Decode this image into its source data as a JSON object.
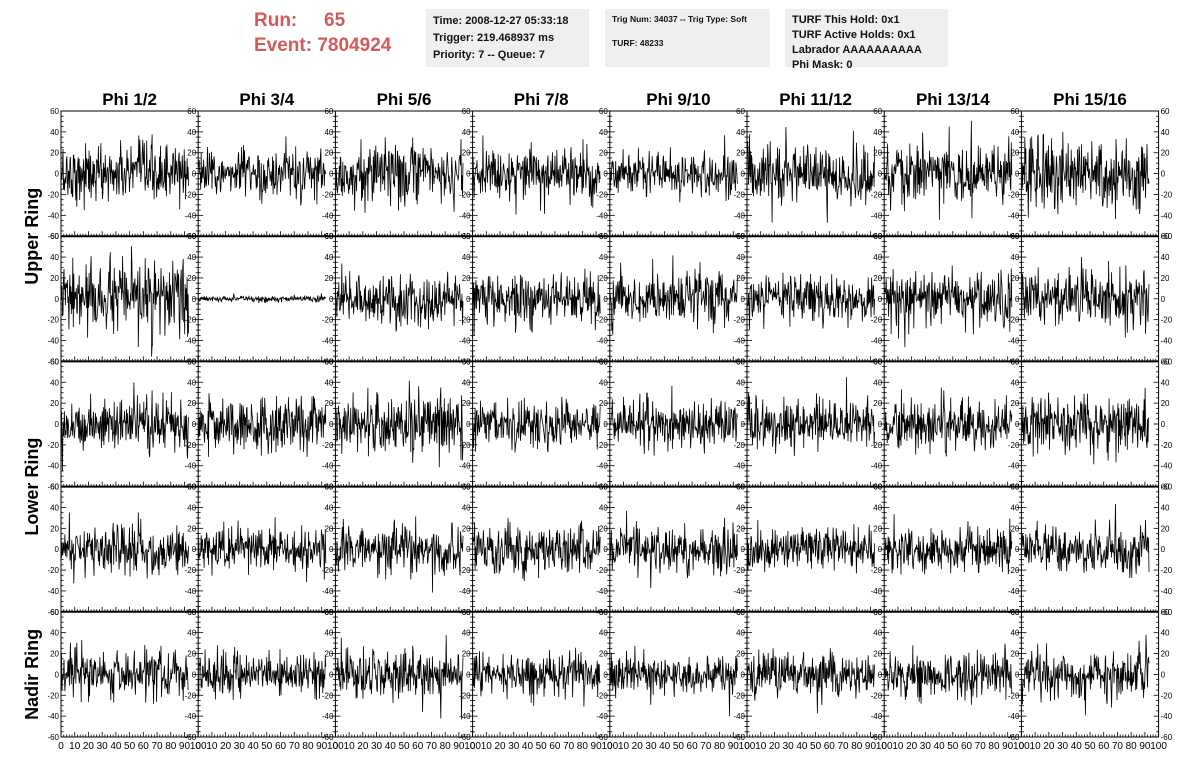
{
  "header": {
    "run_label": "Run:",
    "run_value": "65",
    "event_label": "Event:",
    "event_value": "7804924"
  },
  "info_time": {
    "line1": "Time: 2008-12-27 05:33:18",
    "line2": "Trigger: 219.468937 ms",
    "line3": "Priority: 7 -- Queue: 7"
  },
  "info_trig": {
    "line1": "Trig Num: 34037 -- Trig Type: Soft",
    "line2": "",
    "line3": "TURF: 48233"
  },
  "info_turf": {
    "line1": "TURF This Hold: 0x1",
    "line2": "TURF Active Holds: 0x1",
    "line3": "Labrador AAAAAAAAAA",
    "line4": "Phi Mask: 0"
  },
  "colors": {
    "run_text": "#d25a5a",
    "info_bg": "#efefef",
    "trace": "#000000"
  },
  "chart_data": {
    "type": "line",
    "title": "",
    "columns": [
      "Phi 1/2",
      "Phi 3/4",
      "Phi 5/6",
      "Phi 7/8",
      "Phi 9/10",
      "Phi 11/12",
      "Phi 13/14",
      "Phi 15/16"
    ],
    "rows": 5,
    "row_groups": [
      {
        "label": "Upper Ring",
        "rows": [
          0,
          1
        ]
      },
      {
        "label": "Lower Ring",
        "rows": [
          2,
          3
        ]
      },
      {
        "label": "Nadir Ring",
        "rows": [
          4
        ]
      }
    ],
    "xlim": [
      0,
      100
    ],
    "ylim": [
      -60,
      60
    ],
    "x_ticks": [
      0,
      10,
      20,
      30,
      40,
      50,
      60,
      70,
      80,
      90,
      100
    ],
    "x_tick_labels": [
      "0",
      "10",
      "20",
      "30",
      "40",
      "50",
      "60",
      "70",
      "80",
      "90",
      "100"
    ],
    "y_ticks": [
      -60,
      -40,
      -20,
      0,
      20,
      40,
      60
    ],
    "y_tick_labels": [
      "-60",
      "-40",
      "-20",
      "0",
      "20",
      "40",
      "60"
    ],
    "samples_per_trace": 260,
    "trace_x_end": 93,
    "trace_amplitude": [
      [
        14,
        12,
        15,
        13,
        11,
        14,
        15,
        17
      ],
      [
        17,
        1.5,
        13,
        13,
        13,
        11,
        13,
        15
      ],
      [
        13,
        13,
        16,
        12,
        12,
        12,
        12,
        13
      ],
      [
        12,
        11,
        12,
        12,
        11,
        10,
        12,
        12
      ],
      [
        12,
        10,
        12,
        11,
        10,
        11,
        11,
        13
      ]
    ]
  }
}
